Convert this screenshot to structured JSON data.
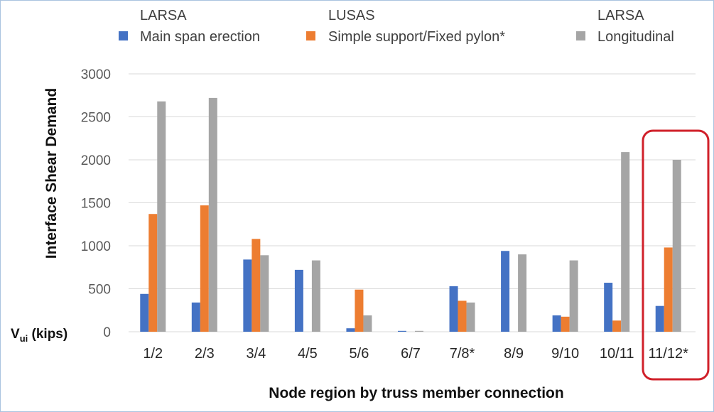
{
  "chart_data": {
    "type": "bar",
    "title": "",
    "xlabel": "Node region by truss member connection",
    "ylabel": "Interface Shear Demand",
    "units_label": {
      "main": "V",
      "sub": "ui",
      "suffix": " (kips)"
    },
    "ylim": [
      0,
      3000
    ],
    "yticks": [
      "0",
      "500",
      "1000",
      "1500",
      "2000",
      "2500",
      "3000"
    ],
    "ytick_values": [
      0,
      500,
      1000,
      1500,
      2000,
      2500,
      3000
    ],
    "grid": true,
    "legend_position": "top",
    "categories": [
      "1/2",
      "2/3",
      "3/4",
      "4/5",
      "5/6",
      "6/7",
      "7/8*",
      "8/9",
      "9/10",
      "10/11",
      "11/12*"
    ],
    "series": [
      {
        "group": "LARSA",
        "name": "Main span erection",
        "color": "#4472c4",
        "values": [
          440,
          340,
          840,
          720,
          40,
          10,
          530,
          940,
          190,
          570,
          300
        ]
      },
      {
        "group": "LUSAS",
        "name": "Simple support/Fixed pylon*",
        "color": "#ed7d31",
        "values": [
          1370,
          1470,
          1080,
          0,
          490,
          0,
          360,
          0,
          175,
          130,
          980
        ]
      },
      {
        "group": "LARSA",
        "name": "Longitudinal",
        "color": "#a5a5a5",
        "values": [
          2680,
          2720,
          890,
          830,
          190,
          10,
          340,
          900,
          830,
          2090,
          2000
        ]
      }
    ],
    "highlight": {
      "category": "11/12*",
      "color": "#d0202a"
    }
  }
}
